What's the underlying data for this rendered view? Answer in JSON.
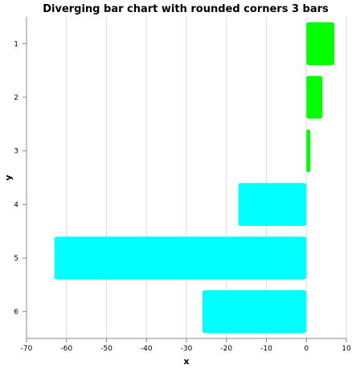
{
  "chart_data": {
    "type": "bar",
    "orientation": "horizontal",
    "title": "Diverging bar chart with rounded corners 3 bars",
    "xlabel": "x",
    "ylabel": "y",
    "categories": [
      "1",
      "2",
      "3",
      "4",
      "5",
      "6"
    ],
    "values": [
      7,
      4,
      1,
      -17,
      -63,
      -26
    ],
    "xlim": [
      -70,
      10
    ],
    "xticks": [
      -70,
      -60,
      -50,
      -40,
      -30,
      -20,
      -10,
      0,
      10
    ],
    "grid": true,
    "colors": {
      "positive": "#00ff00",
      "negative": "#00ffff"
    }
  }
}
